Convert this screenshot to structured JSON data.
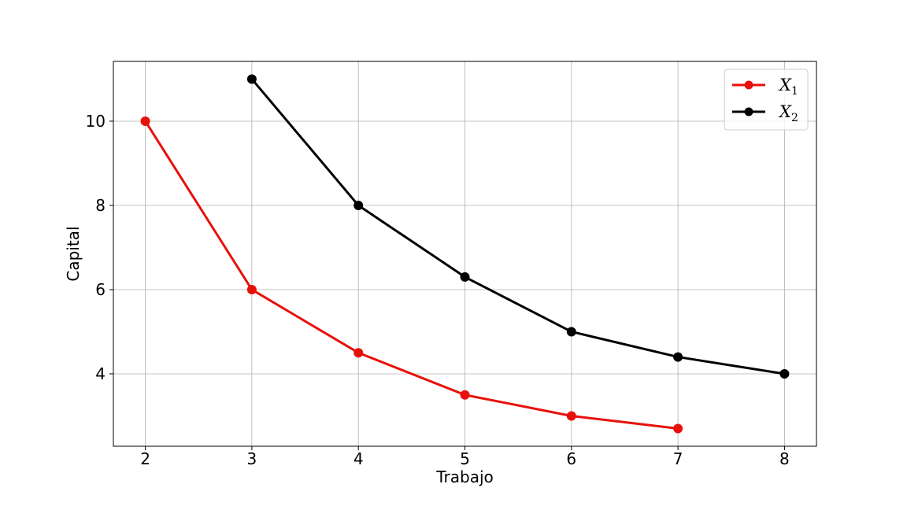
{
  "chart_data": {
    "type": "line",
    "xlabel": "Trabajo",
    "ylabel": "Capital",
    "xlim": [
      1.7,
      8.3
    ],
    "ylim": [
      2.28,
      11.42
    ],
    "xticks": [
      2,
      3,
      4,
      5,
      6,
      7,
      8
    ],
    "yticks": [
      4,
      6,
      8,
      10
    ],
    "grid": true,
    "legend_position": "top-right",
    "series": [
      {
        "name": "X",
        "name_sub": "1",
        "color": "#e8100b",
        "marker": "circle",
        "x": [
          2,
          3,
          4,
          5,
          6,
          7
        ],
        "y": [
          10,
          6,
          4.5,
          3.5,
          3,
          2.7
        ]
      },
      {
        "name": "X",
        "name_sub": "2",
        "color": "#000000",
        "marker": "circle",
        "x": [
          3,
          4,
          5,
          6,
          7,
          8
        ],
        "y": [
          11,
          8,
          6.3,
          5,
          4.4,
          4
        ]
      }
    ]
  }
}
